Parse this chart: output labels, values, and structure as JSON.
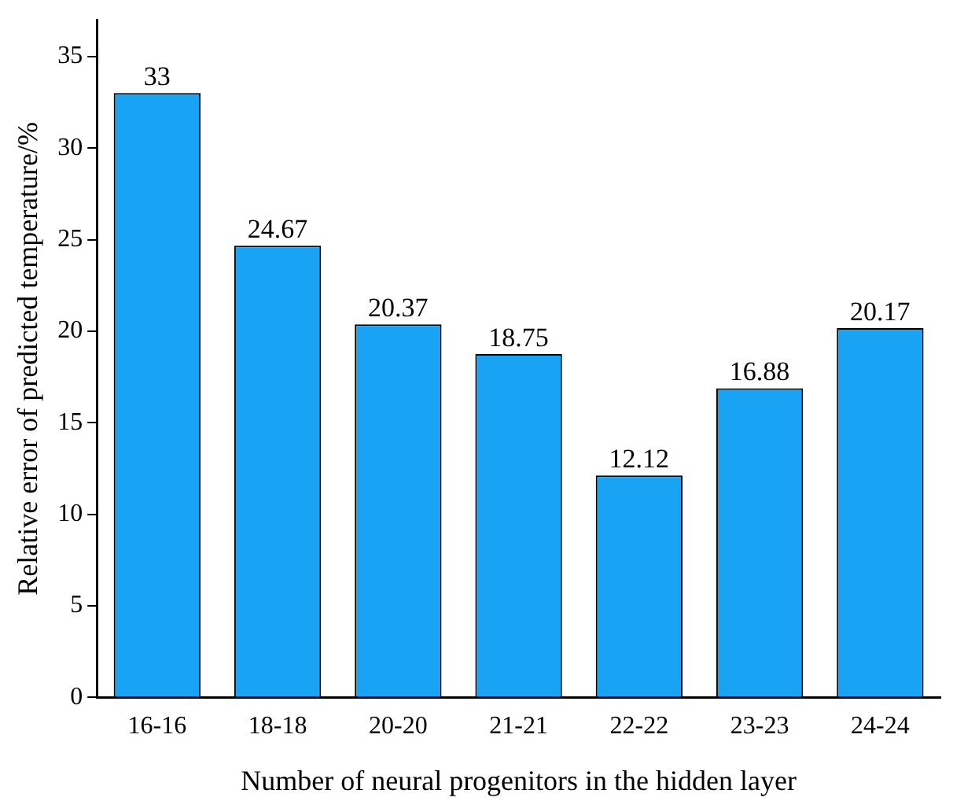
{
  "chart_data": {
    "type": "bar",
    "xlabel": "Number of neural progenitors in the hidden layer",
    "ylabel": "Relative error of predicted temperature/%",
    "categories": [
      "16-16",
      "18-18",
      "20-20",
      "21-21",
      "22-22",
      "23-23",
      "24-24"
    ],
    "values": [
      33,
      24.67,
      20.37,
      18.75,
      12.12,
      16.88,
      20.17
    ],
    "color": "#19a3f5",
    "ylim": [
      0,
      37
    ],
    "yticks": [
      0,
      5,
      10,
      15,
      20,
      25,
      30,
      35
    ],
    "grid": false,
    "legend": false,
    "data_labels": true
  }
}
